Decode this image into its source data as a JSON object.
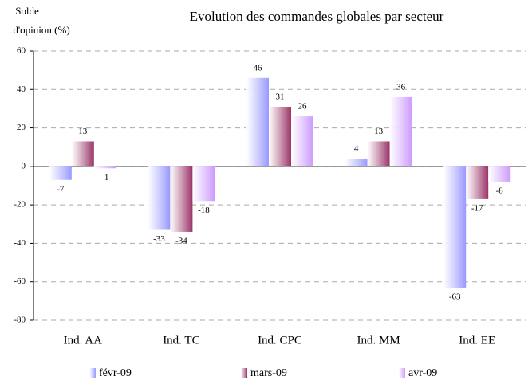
{
  "chart_data": {
    "type": "bar",
    "title": "Evolution des commandes globales par secteur",
    "y_label": [
      "Solde",
      "d'opinion (%)"
    ],
    "categories": [
      "Ind. AA",
      "Ind. TC",
      "Ind. CPC",
      "Ind. MM",
      "Ind. EE"
    ],
    "series": [
      {
        "name": "févr-09",
        "color": "#9999ff",
        "values": [
          -7,
          -33,
          46,
          4,
          -63
        ]
      },
      {
        "name": "mars-09",
        "color": "#993366",
        "values": [
          13,
          -34,
          31,
          13,
          -17
        ]
      },
      {
        "name": "avr-09",
        "color": "#cc99ff",
        "values": [
          -1,
          -18,
          26,
          36,
          -8
        ]
      }
    ],
    "ylim": [
      -80,
      60
    ],
    "yticks": [
      -80,
      -60,
      -40,
      -20,
      0,
      20,
      40,
      60
    ],
    "grid": true
  }
}
